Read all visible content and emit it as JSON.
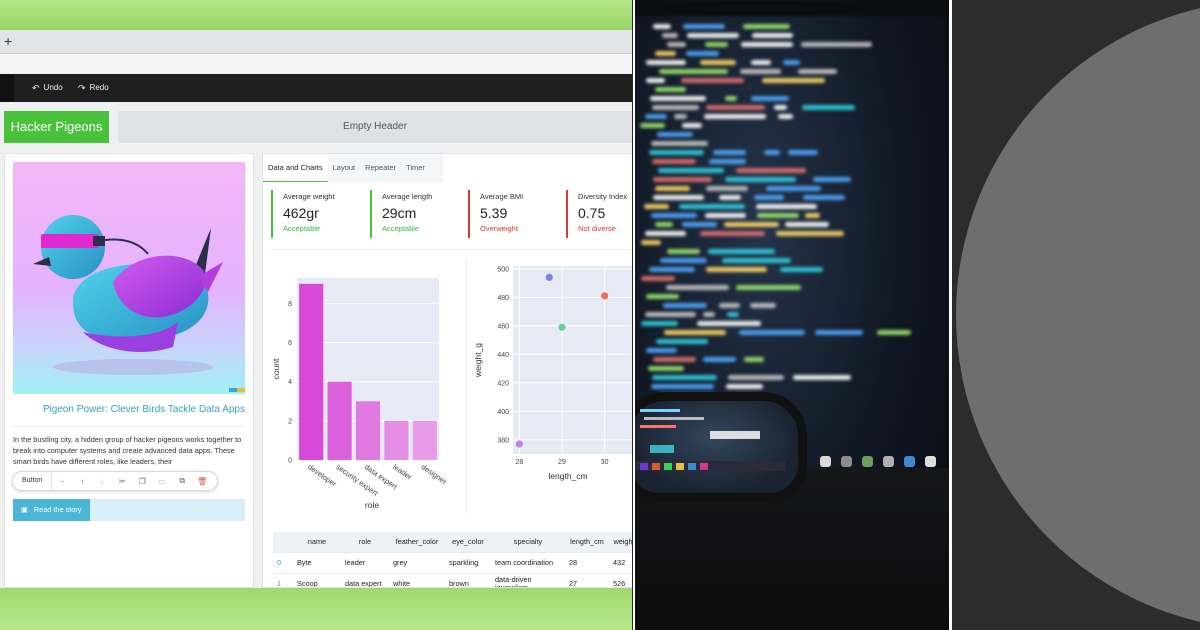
{
  "browser": {
    "new_tab_glyph": "+"
  },
  "toolbar": {
    "undo_label": "Undo",
    "redo_label": "Redo",
    "undo_icon": "undo-icon",
    "redo_icon": "redo-icon"
  },
  "header": {
    "brand": "Hacker Pigeons",
    "empty_header": "Empty Header"
  },
  "story": {
    "title": "Pigeon Power: Clever Birds Tackle Data Apps",
    "body": "In the bustling city, a hidden group of hacker pigeons works together to break into computer systems and create advanced data apps. These smart birds have different roles, like leaders, their",
    "cta_label": "Read the story"
  },
  "floating_toolbar": {
    "label": "Button",
    "icons": [
      "plus-icon",
      "arrow-up-icon",
      "arrow-down-icon",
      "cut-icon",
      "copy-icon",
      "paste-icon",
      "duplicate-icon",
      "trash-icon"
    ]
  },
  "tabs": [
    {
      "label": "Data and Charts",
      "active": true
    },
    {
      "label": "Layout",
      "active": false
    },
    {
      "label": "Repeater",
      "active": false
    },
    {
      "label": "Timer",
      "active": false
    }
  ],
  "kpis": [
    {
      "label": "Average weight",
      "value": "462gr",
      "status": "Acceptable",
      "tone": "good"
    },
    {
      "label": "Average length",
      "value": "29cm",
      "status": "Acceptable",
      "tone": "good"
    },
    {
      "label": "Average BMI",
      "value": "5.39",
      "status": "Overweight",
      "tone": "bad"
    },
    {
      "label": "Diversity Index",
      "value": "0.75",
      "status": "Not diverse",
      "tone": "bad"
    }
  ],
  "chart_data": [
    {
      "type": "bar",
      "categories": [
        "developer",
        "security expert",
        "data expert",
        "leader",
        "designer"
      ],
      "values": [
        9,
        4,
        3,
        2,
        2
      ],
      "xlabel": "role",
      "ylabel": "count",
      "ylim": [
        0,
        9.3
      ],
      "yticks": [
        0,
        2,
        4,
        6,
        8
      ],
      "colors": [
        "#d849d8",
        "#dc5fdc",
        "#e07ae0",
        "#e48de4",
        "#e89be8"
      ]
    },
    {
      "type": "scatter",
      "points": [
        {
          "x": 28,
          "y": 377,
          "color": "#c482e8"
        },
        {
          "x": 28.7,
          "y": 494,
          "color": "#7a86e6"
        },
        {
          "x": 29,
          "y": 459,
          "color": "#6ccf9a"
        },
        {
          "x": 30,
          "y": 481,
          "color": "#e8785c"
        }
      ],
      "xlabel": "length_cm",
      "ylabel": "weight_g",
      "xticks": [
        28,
        29,
        30
      ],
      "yticks": [
        380,
        400,
        420,
        440,
        460,
        480,
        500
      ],
      "xlim": [
        27.85,
        30.9
      ],
      "ylim": [
        370,
        502
      ]
    }
  ],
  "table": {
    "columns": [
      "",
      "name",
      "role",
      "feather_color",
      "eye_color",
      "specialty",
      "length_cm",
      "weight"
    ],
    "rows": [
      [
        "0",
        "Byte",
        "leader",
        "grey",
        "sparkling",
        "team coordination",
        "28",
        "432"
      ],
      [
        "1",
        "Scoop",
        "data expert",
        "white",
        "brown",
        "data-driven journalism",
        "27",
        "526"
      ]
    ]
  }
}
